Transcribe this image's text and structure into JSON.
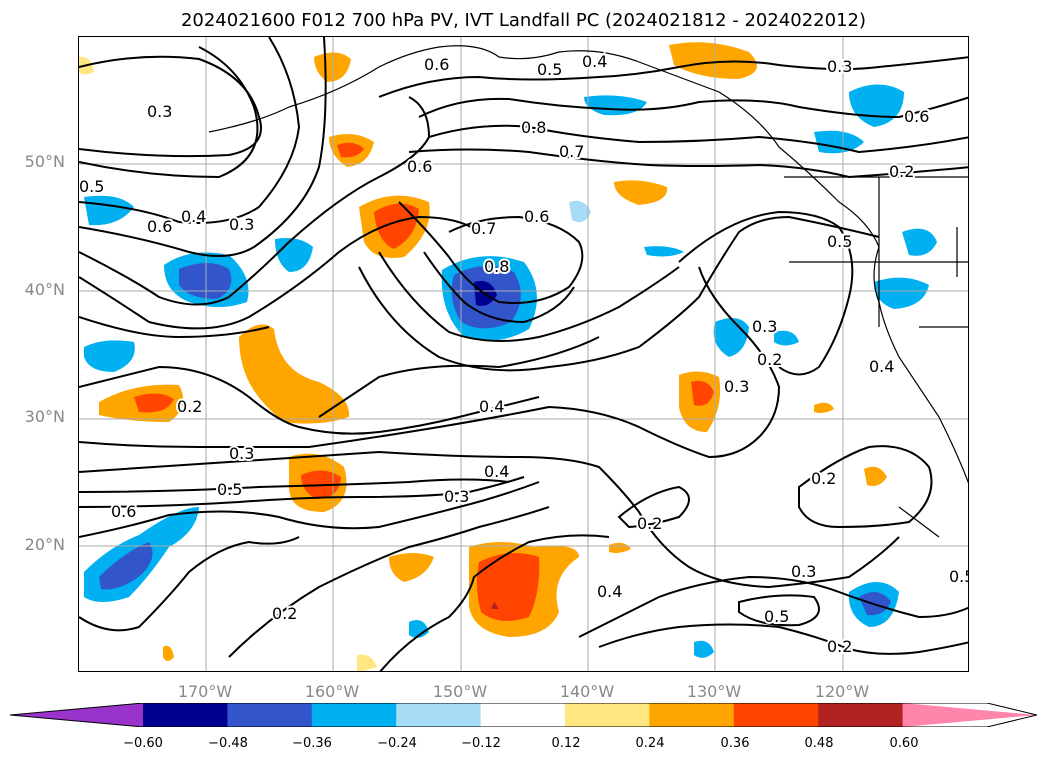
{
  "title": "2024021600 F012 700 hPa PV, IVT Landfall PC (2024021812 - 2024022012)",
  "lat_labels": [
    "50°N",
    "40°N",
    "30°N",
    "20°N"
  ],
  "lon_labels": [
    "170°W",
    "160°W",
    "150°W",
    "140°W",
    "130°W",
    "120°W"
  ],
  "contour_labels": [
    "0.6",
    "0.5",
    "0.4",
    "0.3",
    "0.3",
    "0.8",
    "0.7",
    "0.6",
    "0.7",
    "0.8",
    "0.6",
    "0.5",
    "0.6",
    "0.4",
    "0.3",
    "0.5",
    "0.2",
    "0.3",
    "0.3",
    "0.4",
    "0.4",
    "0.3",
    "0.5",
    "0.6",
    "0.2",
    "0.2",
    "0.4",
    "0.2",
    "0.5",
    "0.3",
    "0.2",
    "0.2",
    "0.3",
    "0.4",
    "0.2",
    "0.6",
    "0.5"
  ],
  "colorbar": {
    "ticks": [
      "−0.60",
      "−0.48",
      "−0.36",
      "−0.24",
      "−0.12",
      "0.12",
      "0.24",
      "0.36",
      "0.48",
      "0.60"
    ],
    "colors": [
      "#9933cc",
      "#000090",
      "#3355cc",
      "#00b0f0",
      "#a6dcf5",
      "#ffffff",
      "#ffe680",
      "#ffa500",
      "#ff4500",
      "#b22222",
      "#ff85aa"
    ]
  },
  "colors": {
    "coast": "#000000",
    "grid": "#aaaaaa",
    "contour": "#000000"
  }
}
